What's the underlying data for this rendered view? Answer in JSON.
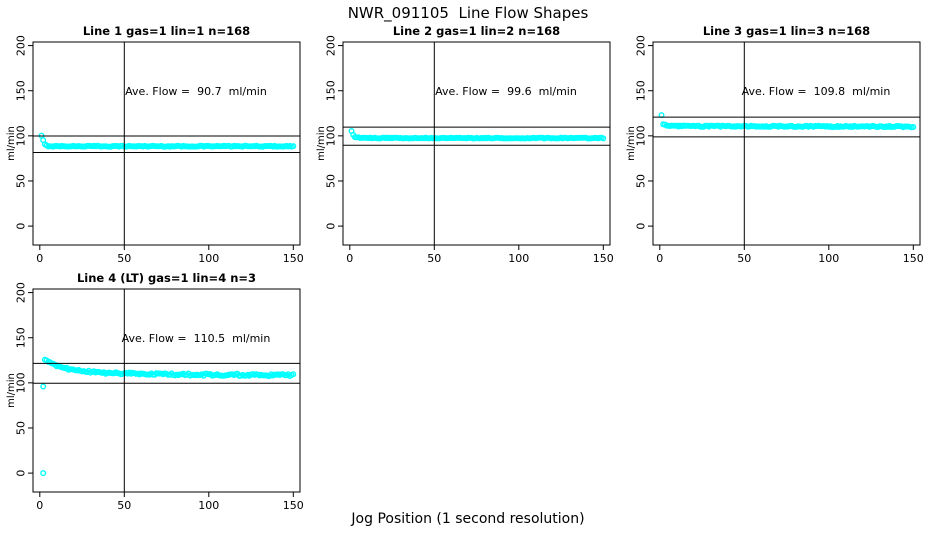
{
  "page": {
    "title": "NWR_091105  Line Flow Shapes",
    "xlabel": "Jog Position (1 second resolution)",
    "background": "#FFFFFF",
    "marker_color": "#00FFFF",
    "line_color": "#000000"
  },
  "chart_data": [
    {
      "type": "scatter",
      "title": "Line 1 gas=1 lin=1 n=168",
      "annotation": "Ave. Flow =  90.7  ml/min",
      "ave_flow": 90.7,
      "ylabel": "ml/min",
      "xticks": [
        0,
        50,
        100,
        150
      ],
      "yticks": [
        0,
        50,
        100,
        150,
        200
      ],
      "xlim": [
        0,
        150
      ],
      "ylim": [
        0,
        200
      ],
      "grid": false,
      "vline_x": 50,
      "hlines": [
        99.8,
        81.6
      ],
      "marker_step": 1,
      "noise": 0.5,
      "trend": [
        [
          1,
          100
        ],
        [
          2,
          95
        ],
        [
          3,
          90.5
        ],
        [
          4,
          89
        ],
        [
          6,
          88.5
        ],
        [
          150,
          88.5
        ]
      ],
      "outliers": []
    },
    {
      "type": "scatter",
      "title": "Line 2 gas=1 lin=2 n=168",
      "annotation": "Ave. Flow =  99.6  ml/min",
      "ave_flow": 99.6,
      "ylabel": "ml/min",
      "xticks": [
        0,
        50,
        100,
        150
      ],
      "yticks": [
        0,
        50,
        100,
        150,
        200
      ],
      "xlim": [
        0,
        150
      ],
      "ylim": [
        0,
        200
      ],
      "grid": false,
      "vline_x": 50,
      "hlines": [
        109.6,
        89.6
      ],
      "marker_step": 1,
      "noise": 0.5,
      "trend": [
        [
          1,
          105
        ],
        [
          2,
          101
        ],
        [
          3,
          99
        ],
        [
          5,
          98
        ],
        [
          8,
          97.6
        ],
        [
          150,
          97.5
        ]
      ],
      "outliers": []
    },
    {
      "type": "scatter",
      "title": "Line 3 gas=1 lin=3 n=168",
      "annotation": "Ave. Flow =  109.8  ml/min",
      "ave_flow": 109.8,
      "ylabel": "ml/min",
      "xticks": [
        0,
        50,
        100,
        150
      ],
      "yticks": [
        0,
        50,
        100,
        150,
        200
      ],
      "xlim": [
        0,
        150
      ],
      "ylim": [
        0,
        200
      ],
      "grid": false,
      "vline_x": 50,
      "hlines": [
        120.8,
        98.8
      ],
      "marker_step": 1,
      "noise": 0.7,
      "trend": [
        [
          2,
          113
        ],
        [
          4,
          111.5
        ],
        [
          10,
          110.8
        ],
        [
          150,
          110.2
        ]
      ],
      "outliers": [
        [
          1,
          123
        ]
      ]
    },
    {
      "type": "scatter",
      "title": "Line 4 (LT) gas=1 lin=4 n=3",
      "annotation": "Ave. Flow =  110.5  ml/min",
      "ave_flow": 110.5,
      "ylabel": "ml/min",
      "xticks": [
        0,
        50,
        100,
        150
      ],
      "yticks": [
        0,
        50,
        100,
        150,
        200
      ],
      "xlim": [
        0,
        150
      ],
      "ylim": [
        0,
        200
      ],
      "grid": false,
      "vline_x": 50,
      "hlines": [
        121.6,
        99.5
      ],
      "marker_step": 1,
      "noise": 1.2,
      "trend": [
        [
          3,
          126
        ],
        [
          5,
          123
        ],
        [
          8,
          120
        ],
        [
          12,
          117.5
        ],
        [
          18,
          115
        ],
        [
          25,
          113
        ],
        [
          35,
          111.5
        ],
        [
          50,
          110.5
        ],
        [
          75,
          109.5
        ],
        [
          100,
          109
        ],
        [
          150,
          108.5
        ]
      ],
      "outliers": [
        [
          2,
          96
        ],
        [
          2,
          0
        ]
      ]
    }
  ]
}
